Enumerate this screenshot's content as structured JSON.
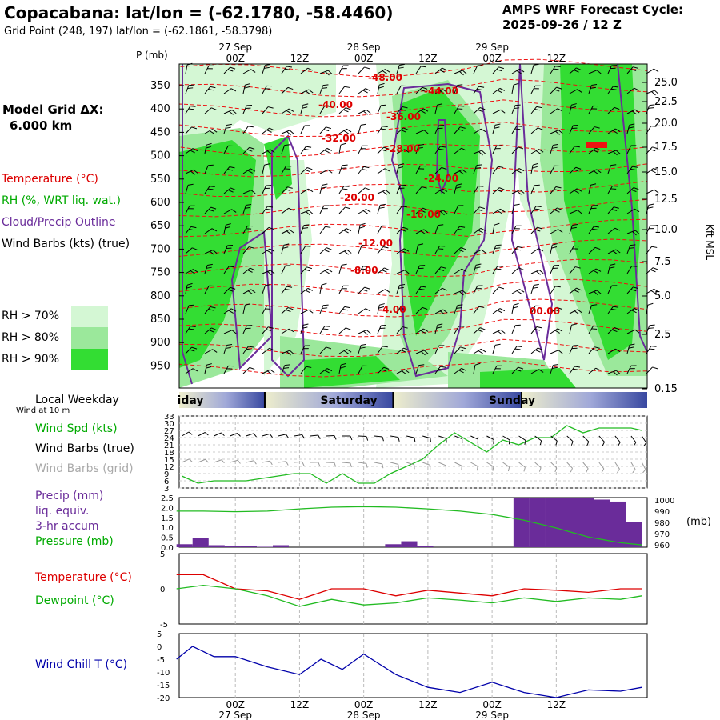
{
  "header": {
    "title": "Copacabana:  lat/lon = (-62.1780, -58.4460)",
    "grid_point": "Grid Point (248, 197) lat/lon = (-62.1861, -58.3798)",
    "cycle_label": "AMPS WRF Forecast Cycle:",
    "cycle_value": "2025-09-26 / 12  Z"
  },
  "sidebar": {
    "model_grid": "Model Grid ΔX:",
    "model_grid_value": "6.000 km",
    "legend": [
      {
        "text": "Temperature (°C)",
        "color": "#dd0000"
      },
      {
        "text": "RH (%, WRT liq. wat.)",
        "color": "#00aa00"
      },
      {
        "text": "Cloud/Precip Outline",
        "color": "#6a2c9a"
      },
      {
        "text": "Wind Barbs (kts) (true)",
        "color": "#000000"
      }
    ],
    "rh_key": [
      {
        "text": "RH > 70%",
        "color": "#d4f7d4"
      },
      {
        "text": "RH > 80%",
        "color": "#9be89b"
      },
      {
        "text": "RH > 90%",
        "color": "#33dd33"
      }
    ],
    "weekday_title": "Local Weekday",
    "wind_10m": "Wind at 10 m",
    "wind_panel_labels": [
      {
        "text": "Wind Spd (kts)",
        "color": "#00aa00"
      },
      {
        "text": "Wind Barbs (true)",
        "color": "#000000"
      },
      {
        "text": "Wind Barbs (grid)",
        "color": "#aaaaaa"
      }
    ],
    "precip_labels": [
      {
        "text": "Precip (mm)",
        "color": "#6a2c9a"
      },
      {
        "text": "liq. equiv.",
        "color": "#6a2c9a"
      },
      {
        "text": "3-hr accum",
        "color": "#6a2c9a"
      },
      {
        "text": "Pressure (mb)",
        "color": "#00aa00"
      }
    ],
    "temp_labels": [
      {
        "text": "Temperature (°C)",
        "color": "#dd0000"
      },
      {
        "text": "Dewpoint (°C)",
        "color": "#00aa00"
      }
    ],
    "chill_label": {
      "text": "Wind Chill T (°C)",
      "color": "#0000aa"
    }
  },
  "chart_data": [
    {
      "type": "time-height",
      "title": "Vertical cross-section",
      "ylabel": "P (mb)",
      "y2label": "Kft MSL",
      "time_ticks": [
        "00Z",
        "12Z",
        "00Z",
        "12Z",
        "00Z",
        "12Z"
      ],
      "date_ticks": [
        "27 Sep",
        "28 Sep",
        "29 Sep"
      ],
      "pressure_ticks": [
        "350",
        "400",
        "450",
        "500",
        "550",
        "600",
        "650",
        "700",
        "750",
        "800",
        "850",
        "900",
        "950"
      ],
      "height_ticks": [
        "25.0",
        "22.5",
        "20.0",
        "17.5",
        "15.0",
        "12.5",
        "10.0",
        "7.5",
        "5.0",
        "2.5",
        "0.15"
      ],
      "temperature_labels": [
        "-48.00",
        "-44.00",
        "-40.00",
        "-36.00",
        "-32.00",
        "-28.00",
        "-24.00",
        "-20.00",
        "-16.00",
        "-12.00",
        "-8.00",
        "-4.00",
        "00.00"
      ]
    },
    {
      "type": "weekday-bar",
      "days": [
        "Friday",
        "Saturday",
        "Sunday"
      ],
      "visible_labels": [
        "iday",
        "Saturday",
        "Sunday"
      ]
    },
    {
      "type": "line",
      "title": "Wind at 10 m",
      "ylabel": "Wind Spd (kts)",
      "y_ticks": [
        "33",
        "30",
        "27",
        "24",
        "21",
        "18",
        "15",
        "12",
        "9",
        "6",
        "3"
      ],
      "ylim": [
        3,
        33
      ],
      "x_hours": [
        -10,
        -7,
        -4,
        -1,
        2,
        5,
        8,
        11,
        14,
        17,
        20,
        23,
        26,
        29,
        32,
        35,
        38,
        41,
        44,
        47,
        50,
        53,
        56,
        59,
        62,
        65,
        68,
        71,
        74,
        76
      ],
      "series": [
        {
          "name": "Wind Spd (kts)",
          "values": [
            8,
            5,
            6,
            6,
            6,
            7,
            8,
            9,
            9,
            5,
            9,
            5,
            5,
            9,
            12,
            15,
            21,
            26,
            22,
            18,
            23,
            21,
            24,
            24,
            29,
            26,
            28,
            28,
            28,
            27
          ]
        }
      ]
    },
    {
      "type": "bar+line",
      "title": "Precip (mm) 3-hr accum / Pressure (mb)",
      "y_ticks": [
        "2.5",
        "2.0",
        "1.5",
        "1.0",
        "0.5",
        "0.0"
      ],
      "ylim": [
        0,
        2.5
      ],
      "y2_ticks": [
        "1000",
        "990",
        "980",
        "970",
        "960"
      ],
      "y2lim": [
        958,
        1002
      ],
      "y2label": "(mb)",
      "precip_start_hours": [
        -11,
        -8,
        -5,
        -2,
        1,
        4,
        7,
        10,
        13,
        16,
        19,
        22,
        25,
        28,
        31,
        34,
        37,
        40,
        43,
        46,
        49,
        52,
        55,
        58,
        61,
        64,
        67,
        70,
        73
      ],
      "precip_values": [
        0.15,
        0.45,
        0.1,
        0.07,
        0.05,
        0.02,
        0.1,
        0.0,
        0.0,
        0.0,
        0.0,
        0.0,
        0.0,
        0.15,
        0.3,
        0.05,
        0.0,
        0.0,
        0.0,
        0.0,
        0.0,
        2.5,
        2.5,
        2.5,
        2.5,
        2.5,
        2.4,
        2.3,
        1.25
      ],
      "pressure_hours": [
        -11,
        -6,
        0,
        6,
        12,
        18,
        24,
        30,
        36,
        42,
        48,
        54,
        60,
        66,
        72,
        76
      ],
      "pressure_values": [
        990,
        990,
        989.5,
        990,
        992,
        993.5,
        994,
        993.5,
        992,
        990,
        987,
        982,
        975,
        967,
        962,
        960
      ]
    },
    {
      "type": "line",
      "title": "Temperature / Dewpoint",
      "y_ticks": [
        "5",
        "0",
        "-5"
      ],
      "ylim": [
        -5,
        5
      ],
      "x_hours": [
        -11,
        -6,
        0,
        6,
        12,
        18,
        24,
        30,
        36,
        42,
        48,
        54,
        60,
        66,
        72,
        76
      ],
      "series": [
        {
          "name": "Temperature (°C)",
          "values": [
            2,
            2,
            0,
            -0.3,
            -1.5,
            0,
            0,
            -1,
            -0.2,
            -0.6,
            -1,
            0,
            -0.2,
            -0.5,
            0,
            0
          ]
        },
        {
          "name": "Dewpoint (°C)",
          "values": [
            0,
            0.5,
            0,
            -1,
            -2.5,
            -1.5,
            -2.3,
            -2,
            -1.3,
            -1.6,
            -2,
            -1.3,
            -1.8,
            -1.3,
            -1.5,
            -1
          ]
        }
      ]
    },
    {
      "type": "line",
      "title": "Wind Chill T",
      "y_ticks": [
        "5",
        "0",
        "-5",
        "-10",
        "-15",
        "-20"
      ],
      "ylim": [
        -20,
        5
      ],
      "x_hours": [
        -11,
        -8,
        -4,
        0,
        6,
        12,
        16,
        20,
        24,
        30,
        36,
        42,
        48,
        54,
        60,
        66,
        72,
        76
      ],
      "series": [
        {
          "name": "Wind Chill T (°C)",
          "values": [
            -5,
            0,
            -4,
            -4,
            -8,
            -11,
            -5,
            -9,
            -3,
            -11,
            -16,
            -18,
            -14,
            -18,
            -20,
            -17,
            -17.5,
            -16
          ]
        }
      ]
    }
  ]
}
